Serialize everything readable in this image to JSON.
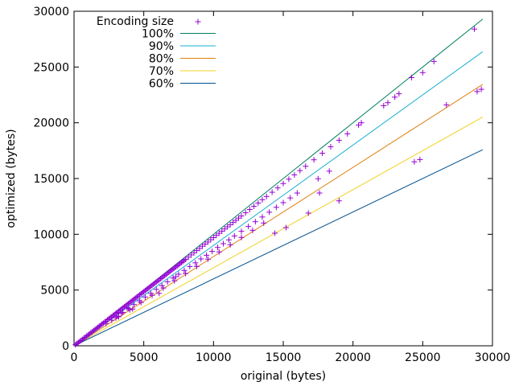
{
  "chart_data": {
    "type": "scatter",
    "title": "",
    "xlabel": "original (bytes)",
    "ylabel": "optimized (bytes)",
    "xlim": [
      0,
      30000
    ],
    "ylim": [
      0,
      30000
    ],
    "x_ticks": [
      0,
      5000,
      10000,
      15000,
      20000,
      25000,
      30000
    ],
    "y_ticks": [
      0,
      5000,
      10000,
      15000,
      20000,
      25000,
      30000
    ],
    "x_tick_labels": [
      "0",
      "5000",
      "10000",
      "15000",
      "20000",
      "25000",
      "30000"
    ],
    "y_tick_labels": [
      "0",
      "5000",
      "10000",
      "15000",
      "20000",
      "25000",
      "30000"
    ],
    "grid": false,
    "legend_position": "top-left",
    "scatter_series": {
      "name": "Encoding size",
      "color": "#9400D3",
      "marker": "plus",
      "points": [
        [
          100,
          100
        ],
        [
          200,
          195
        ],
        [
          300,
          290
        ],
        [
          400,
          390
        ],
        [
          500,
          480
        ],
        [
          600,
          570
        ],
        [
          700,
          680
        ],
        [
          800,
          760
        ],
        [
          900,
          880
        ],
        [
          1000,
          950
        ],
        [
          1100,
          1060
        ],
        [
          1200,
          1170
        ],
        [
          1300,
          1240
        ],
        [
          1400,
          1360
        ],
        [
          1500,
          1450
        ],
        [
          1600,
          1540
        ],
        [
          1700,
          1650
        ],
        [
          1800,
          1740
        ],
        [
          1900,
          1830
        ],
        [
          2000,
          1950
        ],
        [
          2100,
          2030
        ],
        [
          2200,
          2140
        ],
        [
          2300,
          2200
        ],
        [
          2400,
          2330
        ],
        [
          2500,
          2420
        ],
        [
          2600,
          2530
        ],
        [
          2700,
          2610
        ],
        [
          2800,
          2720
        ],
        [
          2900,
          2800
        ],
        [
          3000,
          2920
        ],
        [
          3100,
          3000
        ],
        [
          3200,
          3110
        ],
        [
          3300,
          3190
        ],
        [
          3400,
          3300
        ],
        [
          3500,
          3400
        ],
        [
          3600,
          3490
        ],
        [
          3700,
          3590
        ],
        [
          3800,
          3690
        ],
        [
          3900,
          3780
        ],
        [
          4000,
          3890
        ],
        [
          4100,
          3970
        ],
        [
          4200,
          4080
        ],
        [
          4300,
          4170
        ],
        [
          4400,
          4270
        ],
        [
          4500,
          4370
        ],
        [
          4600,
          4460
        ],
        [
          4700,
          4570
        ],
        [
          4800,
          4660
        ],
        [
          4900,
          4760
        ],
        [
          5000,
          4850
        ],
        [
          5100,
          4950
        ],
        [
          5200,
          5050
        ],
        [
          5300,
          5140
        ],
        [
          5400,
          5240
        ],
        [
          5500,
          5340
        ],
        [
          5600,
          5430
        ],
        [
          5700,
          5530
        ],
        [
          5800,
          5630
        ],
        [
          5900,
          5720
        ],
        [
          6000,
          5820
        ],
        [
          6100,
          5910
        ],
        [
          6200,
          6020
        ],
        [
          6300,
          6110
        ],
        [
          6400,
          6210
        ],
        [
          6500,
          6300
        ],
        [
          6600,
          6400
        ],
        [
          6700,
          6500
        ],
        [
          6800,
          6600
        ],
        [
          6900,
          6700
        ],
        [
          7000,
          6790
        ],
        [
          7100,
          6890
        ],
        [
          7200,
          6980
        ],
        [
          7300,
          7080
        ],
        [
          7400,
          7180
        ],
        [
          7500,
          7270
        ],
        [
          7600,
          7370
        ],
        [
          7700,
          7470
        ],
        [
          7800,
          7560
        ],
        [
          7900,
          7660
        ],
        [
          8000,
          7760
        ],
        [
          8200,
          7950
        ],
        [
          8400,
          8150
        ],
        [
          8600,
          8340
        ],
        [
          8800,
          8540
        ],
        [
          9000,
          8730
        ],
        [
          9200,
          8930
        ],
        [
          9400,
          9120
        ],
        [
          9600,
          9310
        ],
        [
          9800,
          9510
        ],
        [
          10000,
          9700
        ],
        [
          10200,
          9900
        ],
        [
          10400,
          10090
        ],
        [
          10600,
          10280
        ],
        [
          10800,
          10480
        ],
        [
          11000,
          10670
        ],
        [
          11200,
          10860
        ],
        [
          11400,
          11060
        ],
        [
          11600,
          11250
        ],
        [
          11800,
          11450
        ],
        [
          12000,
          11640
        ],
        [
          12300,
          11930
        ],
        [
          12600,
          12220
        ],
        [
          12900,
          12510
        ],
        [
          13200,
          12800
        ],
        [
          13500,
          13100
        ],
        [
          13800,
          13390
        ],
        [
          14200,
          13770
        ],
        [
          14600,
          14160
        ],
        [
          15000,
          14550
        ],
        [
          15400,
          14940
        ],
        [
          15800,
          15330
        ],
        [
          16200,
          15710
        ],
        [
          16600,
          16100
        ],
        [
          17200,
          16680
        ],
        [
          17800,
          17270
        ],
        [
          18400,
          17850
        ],
        [
          19000,
          18430
        ],
        [
          19600,
          19010
        ],
        [
          20400,
          19790
        ],
        [
          20600,
          20000
        ],
        [
          22200,
          21530
        ],
        [
          22500,
          21800
        ],
        [
          23000,
          22300
        ],
        [
          23300,
          22600
        ],
        [
          24200,
          24050
        ],
        [
          25000,
          24500
        ],
        [
          25800,
          25500
        ],
        [
          28700,
          28400
        ],
        [
          2300,
          2000
        ],
        [
          2700,
          2300
        ],
        [
          3100,
          2650
        ],
        [
          3500,
          3000
        ],
        [
          3900,
          3340
        ],
        [
          4300,
          3700
        ],
        [
          4700,
          4030
        ],
        [
          5100,
          4370
        ],
        [
          5500,
          4700
        ],
        [
          5900,
          5060
        ],
        [
          6300,
          5400
        ],
        [
          6700,
          5740
        ],
        [
          7100,
          6080
        ],
        [
          7500,
          6420
        ],
        [
          7900,
          6760
        ],
        [
          8300,
          7110
        ],
        [
          8700,
          7440
        ],
        [
          9100,
          7790
        ],
        [
          9500,
          8120
        ],
        [
          9900,
          8470
        ],
        [
          10300,
          8820
        ],
        [
          10700,
          9160
        ],
        [
          11100,
          9500
        ],
        [
          11500,
          9850
        ],
        [
          12000,
          10270
        ],
        [
          12500,
          10700
        ],
        [
          13000,
          11130
        ],
        [
          13500,
          11550
        ],
        [
          14000,
          11980
        ],
        [
          14500,
          12420
        ],
        [
          15000,
          12840
        ],
        [
          15500,
          13260
        ],
        [
          16000,
          13700
        ],
        [
          17500,
          14980
        ],
        [
          18300,
          15660
        ],
        [
          3200,
          2600
        ],
        [
          4000,
          3230
        ],
        [
          4800,
          3880
        ],
        [
          5600,
          4530
        ],
        [
          6400,
          5180
        ],
        [
          7200,
          5830
        ],
        [
          8000,
          6480
        ],
        [
          8800,
          7120
        ],
        [
          9600,
          7770
        ],
        [
          10400,
          8420
        ],
        [
          11200,
          9060
        ],
        [
          12000,
          9720
        ],
        [
          12800,
          10360
        ],
        [
          13600,
          11010
        ],
        [
          14400,
          10100
        ],
        [
          15200,
          10600
        ],
        [
          16800,
          11900
        ],
        [
          17600,
          13700
        ],
        [
          19000,
          13000
        ],
        [
          26700,
          21600
        ],
        [
          24400,
          16500
        ],
        [
          24800,
          16700
        ],
        [
          28900,
          22800
        ],
        [
          29200,
          23000
        ],
        [
          3000,
          2500
        ],
        [
          3400,
          2900
        ],
        [
          3800,
          3400
        ],
        [
          4200,
          3300
        ],
        [
          6100,
          4700
        ],
        [
          7300,
          6200
        ]
      ]
    },
    "series": [
      {
        "name": "100%",
        "ratio": 1.0,
        "color": "#008060"
      },
      {
        "name": "90%",
        "ratio": 0.9,
        "color": "#1ab0d0"
      },
      {
        "name": "80%",
        "ratio": 0.8,
        "color": "#e08010"
      },
      {
        "name": "70%",
        "ratio": 0.7,
        "color": "#f0d020"
      },
      {
        "name": "60%",
        "ratio": 0.6,
        "color": "#005090"
      }
    ],
    "line_x_range": [
      0,
      29300
    ]
  }
}
